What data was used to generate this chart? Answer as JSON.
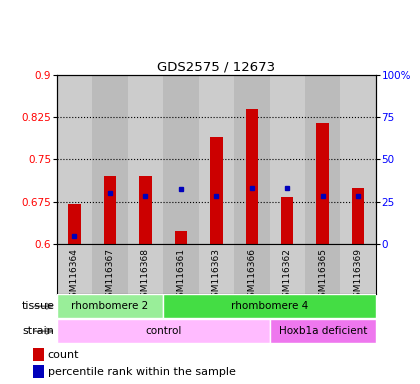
{
  "title": "GDS2575 / 12673",
  "samples": [
    "GSM116364",
    "GSM116367",
    "GSM116368",
    "GSM116361",
    "GSM116363",
    "GSM116366",
    "GSM116362",
    "GSM116365",
    "GSM116369"
  ],
  "count_values": [
    0.67,
    0.72,
    0.72,
    0.623,
    0.79,
    0.84,
    0.683,
    0.815,
    0.7
  ],
  "count_base": 0.6,
  "percentile_values": [
    0.614,
    0.69,
    0.685,
    0.697,
    0.685,
    0.7,
    0.7,
    0.685,
    0.685
  ],
  "ylim_left": [
    0.6,
    0.9
  ],
  "ylim_right": [
    0,
    100
  ],
  "yticks_left": [
    0.6,
    0.675,
    0.75,
    0.825,
    0.9
  ],
  "yticks_right": [
    0,
    25,
    50,
    75,
    100
  ],
  "ytick_labels_left": [
    "0.6",
    "0.675",
    "0.75",
    "0.825",
    "0.9"
  ],
  "ytick_labels_right": [
    "0",
    "25",
    "50",
    "75",
    "100%"
  ],
  "bar_color": "#cc0000",
  "blue_color": "#0000bb",
  "tissue_groups": [
    {
      "label": "rhombomere 2",
      "start": 0,
      "end": 3,
      "color": "#99ee99"
    },
    {
      "label": "rhombomere 4",
      "start": 3,
      "end": 9,
      "color": "#44dd44"
    }
  ],
  "strain_groups": [
    {
      "label": "control",
      "start": 0,
      "end": 6,
      "color": "#ffbbff"
    },
    {
      "label": "Hoxb1a deficient",
      "start": 6,
      "end": 9,
      "color": "#ee77ee"
    }
  ],
  "legend_count_label": "count",
  "legend_percentile_label": "percentile rank within the sample",
  "col_bg_even": "#cccccc",
  "col_bg_odd": "#bbbbbb"
}
